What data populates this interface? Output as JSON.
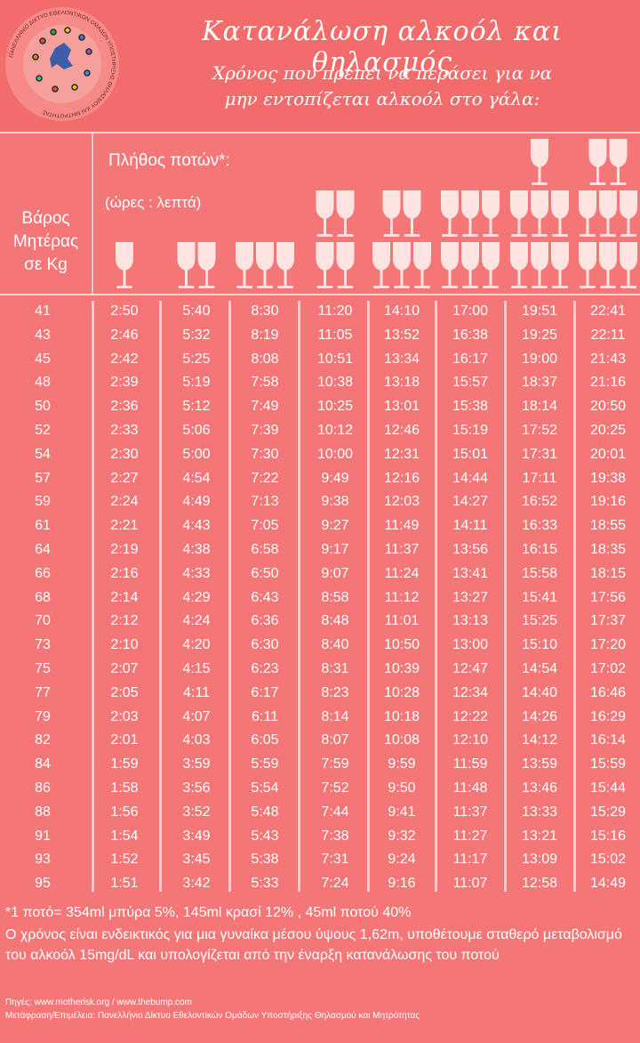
{
  "title": "Κατανάλωση αλκοόλ και θηλασμός",
  "subtitle_line1": "Χρόνος που πρέπει να περάσει για να",
  "subtitle_line2": "μην εντοπίζεται αλκοόλ στο γάλα:",
  "logo_text": "ΠΑΝΕΛΛΗΝΙΟ ΔΙΚΤΥΟ ΕΘΕΛΟΝΤΙΚΩΝ ΟΜΑΔΩΝ ΥΠΟΣΤΗΡΙΞΗΣ ΘΗΛΑΣΜΟΥ ΚΑΙ ΜΗΤΡΟΤΗΤΑΣ",
  "table": {
    "weight_header_lines": [
      "Βάρος",
      "Μητέρας",
      "σε Kg"
    ],
    "drinks_header": "Πλήθος ποτών*:",
    "time_format": "(ώρες : λεπτά)",
    "drink_counts": [
      1,
      2,
      3,
      4,
      5,
      6,
      7,
      8
    ],
    "rows": [
      {
        "weight": "41",
        "times": [
          "2:50",
          "5:40",
          "8:30",
          "11:20",
          "14:10",
          "17:00",
          "19:51",
          "22:41"
        ]
      },
      {
        "weight": "43",
        "times": [
          "2:46",
          "5:32",
          "8:19",
          "11:05",
          "13:52",
          "16:38",
          "19:25",
          "22:11"
        ]
      },
      {
        "weight": "45",
        "times": [
          "2:42",
          "5:25",
          "8:08",
          "10:51",
          "13:34",
          "16:17",
          "19:00",
          "21:43"
        ]
      },
      {
        "weight": "48",
        "times": [
          "2:39",
          "5:19",
          "7:58",
          "10:38",
          "13:18",
          "15:57",
          "18:37",
          "21:16"
        ]
      },
      {
        "weight": "50",
        "times": [
          "2:36",
          "5:12",
          "7:49",
          "10:25",
          "13:01",
          "15:38",
          "18:14",
          "20:50"
        ]
      },
      {
        "weight": "52",
        "times": [
          "2:33",
          "5:06",
          "7:39",
          "10:12",
          "12:46",
          "15:19",
          "17:52",
          "20:25"
        ]
      },
      {
        "weight": "54",
        "times": [
          "2:30",
          "5:00",
          "7:30",
          "10:00",
          "12:31",
          "15:01",
          "17:31",
          "20:01"
        ]
      },
      {
        "weight": "57",
        "times": [
          "2:27",
          "4:54",
          "7:22",
          "9:49",
          "12:16",
          "14:44",
          "17:11",
          "19:38"
        ]
      },
      {
        "weight": "59",
        "times": [
          "2:24",
          "4:49",
          "7:13",
          "9:38",
          "12:03",
          "14:27",
          "16:52",
          "19:16"
        ]
      },
      {
        "weight": "61",
        "times": [
          "2:21",
          "4:43",
          "7:05",
          "9:27",
          "11:49",
          "14:11",
          "16:33",
          "18:55"
        ]
      },
      {
        "weight": "64",
        "times": [
          "2:19",
          "4:38",
          "6:58",
          "9:17",
          "11:37",
          "13:56",
          "16:15",
          "18:35"
        ]
      },
      {
        "weight": "66",
        "times": [
          "2:16",
          "4:33",
          "6:50",
          "9:07",
          "11:24",
          "13:41",
          "15:58",
          "18:15"
        ]
      },
      {
        "weight": "68",
        "times": [
          "2:14",
          "4:29",
          "6:43",
          "8:58",
          "11:12",
          "13:27",
          "15:41",
          "17:56"
        ]
      },
      {
        "weight": "70",
        "times": [
          "2:12",
          "4:24",
          "6:36",
          "8:48",
          "11:01",
          "13:13",
          "15:25",
          "17:37"
        ]
      },
      {
        "weight": "73",
        "times": [
          "2:10",
          "4:20",
          "6:30",
          "8:40",
          "10:50",
          "13:00",
          "15:10",
          "17:20"
        ]
      },
      {
        "weight": "75",
        "times": [
          "2:07",
          "4:15",
          "6:23",
          "8:31",
          "10:39",
          "12:47",
          "14:54",
          "17:02"
        ]
      },
      {
        "weight": "77",
        "times": [
          "2:05",
          "4:11",
          "6:17",
          "8:23",
          "10:28",
          "12:34",
          "14:40",
          "16:46"
        ]
      },
      {
        "weight": "79",
        "times": [
          "2:03",
          "4:07",
          "6:11",
          "8:14",
          "10:18",
          "12:22",
          "14:26",
          "16:29"
        ]
      },
      {
        "weight": "82",
        "times": [
          "2:01",
          "4:03",
          "6:05",
          "8:07",
          "10:08",
          "12:10",
          "14:12",
          "16:14"
        ]
      },
      {
        "weight": "84",
        "times": [
          "1:59",
          "3:59",
          "5:59",
          "7:59",
          "9:59",
          "11:59",
          "13:59",
          "15:59"
        ]
      },
      {
        "weight": "86",
        "times": [
          "1:58",
          "3:56",
          "5:54",
          "7:52",
          "9:50",
          "11:48",
          "13:46",
          "15:44"
        ]
      },
      {
        "weight": "88",
        "times": [
          "1:56",
          "3:52",
          "5:48",
          "7:44",
          "9:41",
          "11:37",
          "13:33",
          "15:29"
        ]
      },
      {
        "weight": "91",
        "times": [
          "1:54",
          "3:49",
          "5:43",
          "7:38",
          "9:32",
          "11:27",
          "13:21",
          "15:16"
        ]
      },
      {
        "weight": "93",
        "times": [
          "1:52",
          "3:45",
          "5:38",
          "7:31",
          "9:24",
          "11:17",
          "13:09",
          "15:02"
        ]
      },
      {
        "weight": "95",
        "times": [
          "1:51",
          "3:42",
          "5:33",
          "7:24",
          "9:16",
          "11:07",
          "12:58",
          "14:49"
        ]
      }
    ]
  },
  "footnote": "*1 ποτό= 354ml μπύρα 5%, 145ml κρασί 12% , 45ml ποτού 40%",
  "note": "Ο χρόνος είναι ενδεικτικός για μια γυναίκα μέσου ύψους 1,62m, υποθέτουμε σταθερό μεταβολισμό του αλκοόλ 15mg/dL και υπολογίζεται από την έναρξη κατανάλωσης του ποτού",
  "sources": "Πηγές: www.motherisk.org / www.thebump.com",
  "credits": "Μετάφραση/Επιμέλεια: Πανελλήνιο Δίκτυο Εθελοντικών Ομάδων Υποστήριξης Θηλασμού και Μητρότητας",
  "colors": {
    "background": "#f47677",
    "header": "#f36c6c",
    "divider": "#fbd0ce",
    "glass": "#fde4e1",
    "text": "#ffffff"
  },
  "icons": [
    "wine-glass-icon",
    "organization-logo-icon"
  ]
}
